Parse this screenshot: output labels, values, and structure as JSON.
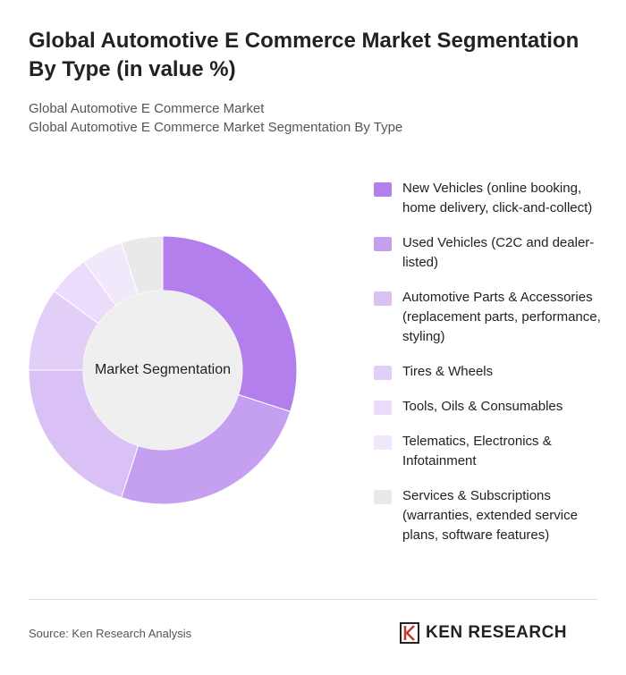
{
  "chart_data": {
    "type": "donut",
    "title": "Global Automotive E Commerce Market Segmentation By Type (in value %)",
    "subtitle": [
      "Global Automotive E Commerce Market",
      "Global Automotive E Commerce Market Segmentation By Type"
    ],
    "center_label": "Market Segmentation",
    "categories": [
      "New Vehicles (online booking, home delivery, click-and-collect)",
      "Used Vehicles (C2C and dealer-listed)",
      "Automotive Parts & Accessories (replacement parts, performance, styling)",
      "Tires & Wheels",
      "Tools, Oils & Consumables",
      "Telematics, Electronics & Infotainment",
      "Services & Subscriptions (warranties, extended service plans, software features)"
    ],
    "values": [
      30,
      25,
      20,
      10,
      5,
      5,
      5
    ],
    "colors": [
      "#b27fec",
      "#c5a0f1",
      "#d9c1f6",
      "#e2cff8",
      "#eadcfa",
      "#f1e9fb",
      "#e9e9e9"
    ],
    "source": "Source: Ken Research Analysis",
    "brand": "KEN RESEARCH"
  }
}
